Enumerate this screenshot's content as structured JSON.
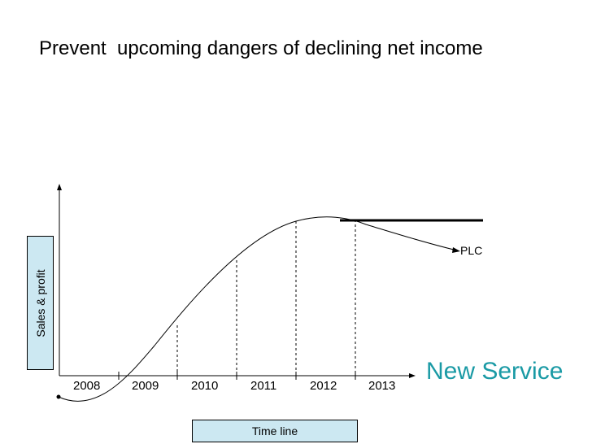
{
  "slide": {
    "title": "Prevent  upcoming dangers of declining net income",
    "y_axis_label": "Sales & profit",
    "x_axis_label": "Time line",
    "years": [
      "2008",
      "2009",
      "2010",
      "2011",
      "2012",
      "2013"
    ],
    "curve_label": "PLC",
    "callout": "New Service"
  },
  "colors": {
    "label_box_fill": "#cce8f2",
    "callout_text": "#1a9aa5"
  }
}
